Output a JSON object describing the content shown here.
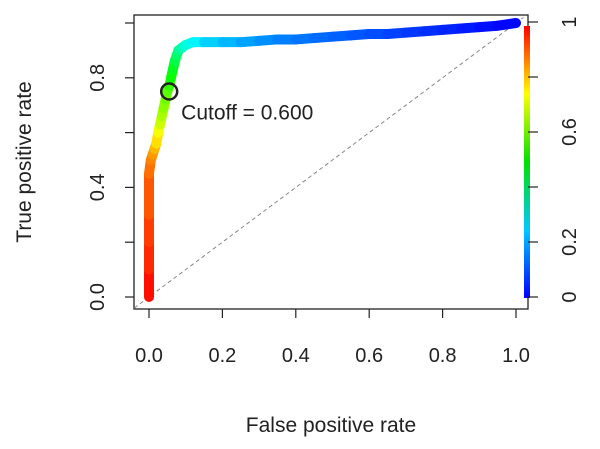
{
  "chart_data": {
    "type": "line",
    "xlabel": "False positive rate",
    "ylabel": "True positive rate",
    "xlim": [
      0,
      1.04
    ],
    "ylim": [
      -0.02,
      1.02
    ],
    "x_ticks": [
      "0.0",
      "0.2",
      "0.4",
      "0.6",
      "0.8",
      "1.0"
    ],
    "y_ticks": [
      "0.0",
      "0.4",
      "0.8"
    ],
    "colorbar_ticks": [
      "0",
      "0.2",
      "0.6",
      "1"
    ],
    "colorbar_range": [
      0,
      1
    ],
    "grid": false,
    "diagonal_reference": true,
    "series": [
      {
        "x": [
          0,
          0,
          0,
          0,
          0,
          0.005,
          0.01,
          0.015,
          0.02,
          0.025,
          0.03,
          0.035,
          0.04,
          0.045,
          0.05,
          0.055,
          0.06,
          0.065,
          0.07,
          0.075,
          0.08,
          0.09,
          0.1,
          0.12,
          0.15,
          0.2,
          0.25,
          0.3,
          0.35,
          0.4,
          0.45,
          0.5,
          0.55,
          0.6,
          0.65,
          0.7,
          0.75,
          0.8,
          0.85,
          0.9,
          0.95,
          1.0
        ],
        "y": [
          0,
          0.1,
          0.2,
          0.3,
          0.45,
          0.5,
          0.52,
          0.54,
          0.56,
          0.6,
          0.63,
          0.66,
          0.69,
          0.72,
          0.75,
          0.77,
          0.8,
          0.83,
          0.86,
          0.88,
          0.9,
          0.91,
          0.92,
          0.93,
          0.93,
          0.93,
          0.93,
          0.935,
          0.94,
          0.94,
          0.945,
          0.95,
          0.955,
          0.96,
          0.96,
          0.965,
          0.97,
          0.975,
          0.98,
          0.985,
          0.99,
          1.0
        ],
        "cutoffs": [
          1.0,
          0.97,
          0.95,
          0.93,
          0.9,
          0.88,
          0.86,
          0.84,
          0.8,
          0.76,
          0.72,
          0.68,
          0.65,
          0.62,
          0.6,
          0.57,
          0.53,
          0.49,
          0.45,
          0.42,
          0.38,
          0.34,
          0.3,
          0.26,
          0.22,
          0.19,
          0.17,
          0.15,
          0.13,
          0.12,
          0.11,
          0.1,
          0.09,
          0.08,
          0.07,
          0.06,
          0.05,
          0.04,
          0.03,
          0.02,
          0.01,
          0.0
        ]
      }
    ],
    "annotations": [
      {
        "text": "Cutoff = 0.600",
        "x": 0.055,
        "y": 0.75
      }
    ],
    "colors": {
      "diagonal": "#888888",
      "axis": "#222222",
      "marker": "#222222"
    }
  }
}
